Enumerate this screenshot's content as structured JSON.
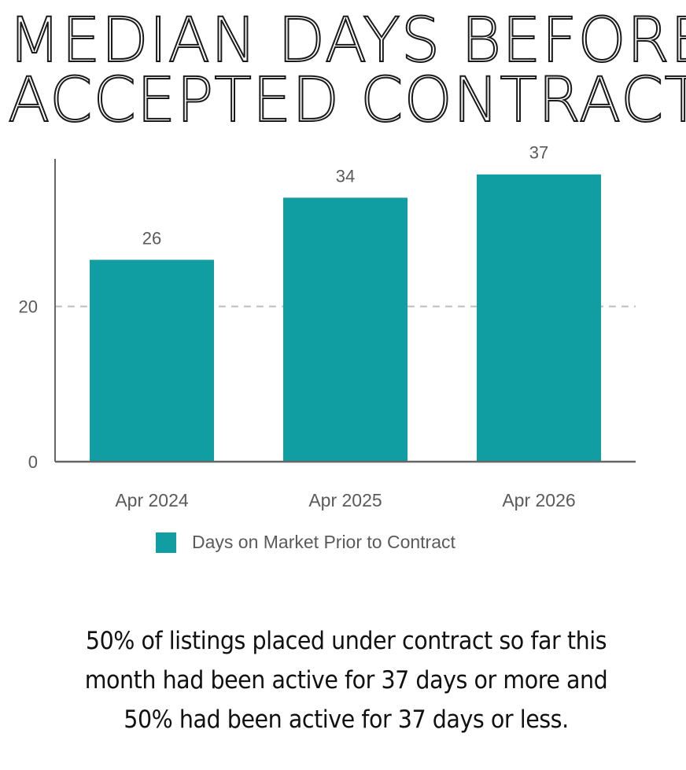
{
  "title_lines": [
    "MEDIAN DAYS BEFORE",
    "ACCEPTED CONTRACT"
  ],
  "colors": {
    "bar": "#109ea2",
    "axis": "#666666",
    "gridline": "#bdbdbd",
    "tick_text": "#5a5a5a"
  },
  "chart_data": {
    "type": "bar",
    "categories": [
      "Apr 2024",
      "Apr 2025",
      "Apr 2026"
    ],
    "series": [
      {
        "name": "Days on Market Prior to Contract",
        "values": [
          26,
          34,
          37
        ]
      }
    ],
    "data_labels": [
      "26",
      "34",
      "37"
    ],
    "y_ticks": [
      0,
      20
    ],
    "ylim": [
      0,
      39
    ],
    "grid": "dashed",
    "legend_position": "bottom"
  },
  "legend_label": "Days on Market Prior to Contract",
  "note_lines": [
    "50% of listings placed under contract so far this",
    "month had been active for 37 days or more and",
    "50% had been active for 37 days or less."
  ]
}
